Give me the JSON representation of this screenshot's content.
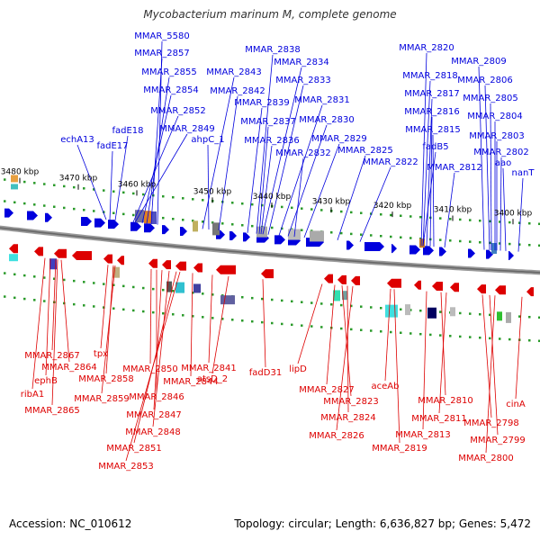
{
  "title": "Mycobacterium marinum M, complete genome",
  "footer": {
    "accession": "Accession: NC_010612",
    "topology": "Topology: circular; Length: 6,636,827 bp; Genes: 5,472"
  },
  "colors": {
    "forward": "#0000dd",
    "reverse": "#dd0000",
    "backbone": "#888888",
    "tick": "#2a9a2a"
  },
  "ticks": [
    "3480 kbp",
    "3470 kbp",
    "3460 kbp",
    "3450 kbp",
    "3440 kbp",
    "3430 kbp",
    "3420 kbp",
    "3410 kbp",
    "3400 kbp"
  ],
  "forward_labels": [
    "MMAR_5580",
    "MMAR_2857",
    "MMAR_2855",
    "MMAR_2854",
    "MMAR_2852",
    "fadE18",
    "MMAR_2849",
    "echA13",
    "fadE17",
    "ahpC_1",
    "MMAR_2843",
    "MMAR_2842",
    "MMAR_2838",
    "MMAR_2834",
    "MMAR_2833",
    "MMAR_2839",
    "MMAR_2837",
    "MMAR_2831",
    "MMAR_2830",
    "MMAR_2836",
    "MMAR_2829",
    "MMAR_2832",
    "MMAR_2825",
    "MMAR_2822",
    "MMAR_2820",
    "MMAR_2818",
    "MMAR_2817",
    "MMAR_2816",
    "MMAR_2815",
    "fadB5",
    "MMAR_2812",
    "MMAR_2809",
    "MMAR_2806",
    "MMAR_2805",
    "MMAR_2804",
    "MMAR_2803",
    "MMAR_2802",
    "aao",
    "nanT"
  ],
  "reverse_labels": [
    "MMAR_2867",
    "MMAR_2864",
    "ephB",
    "ribA1",
    "MMAR_2865",
    "tpx",
    "MMAR_2858",
    "MMAR_2859",
    "MMAR_2850",
    "MMAR_2846",
    "MMAR_2847",
    "MMAR_2848",
    "MMAR_2851",
    "MMAR_2853",
    "MMAR_2844",
    "MMAR_2841",
    "atsD_2",
    "fadD31",
    "lipD",
    "MMAR_2827",
    "MMAR_2823",
    "MMAR_2824",
    "MMAR_2826",
    "aceAb",
    "MMAR_2819",
    "MMAR_2813",
    "MMAR_2810",
    "MMAR_2811",
    "MMAR_2798",
    "MMAR_2799",
    "MMAR_2800",
    "cinA"
  ]
}
